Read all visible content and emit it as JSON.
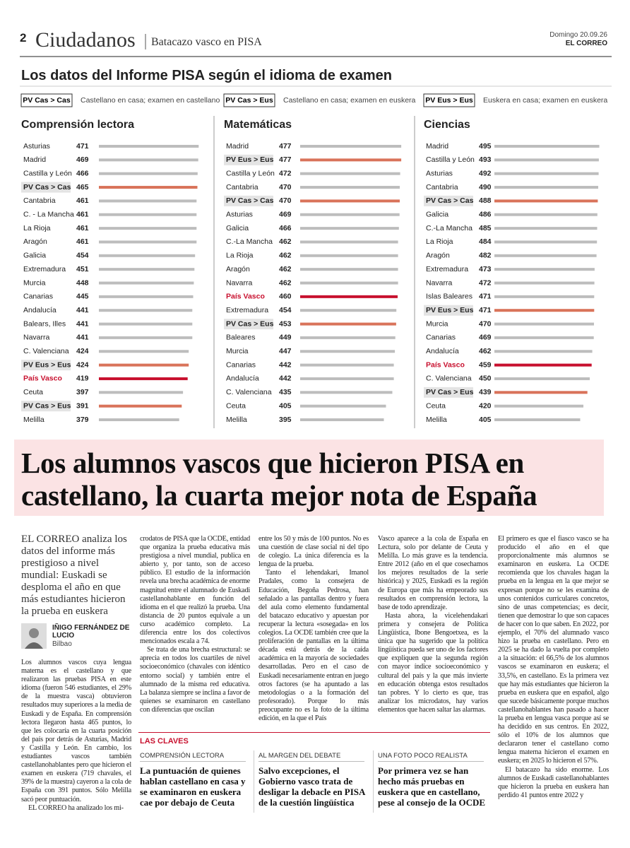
{
  "header": {
    "page_number": "2",
    "section": "Ciudadanos",
    "topic": "Batacazo vasco en PISA",
    "date": "Domingo 20.09.26",
    "publication": "EL CORREO"
  },
  "charts_title": "Los datos del Informe PISA según el idioma de examen",
  "keys": [
    {
      "label": "PV Cas > Cas",
      "text": "Castellano en casa; examen en castellano"
    },
    {
      "label": "PV Cas > Eus",
      "text": "Castellano en casa; examen en euskera"
    },
    {
      "label": "PV Eus > Eus",
      "text": "Euskera en casa; examen en euskera"
    }
  ],
  "palette": {
    "default": "#bdbdbd",
    "language_group": "#d9735a",
    "region": "#c8102e"
  },
  "chart_data": [
    {
      "type": "bar",
      "orientation": "horizontal",
      "title": "Comprensión lectora",
      "categories": [
        "Asturias",
        "Madrid",
        "Castilla y León",
        "PV Cas > Cas",
        "Cantabria",
        "C. - La Mancha",
        "La Rioja",
        "Aragón",
        "Galicia",
        "Extremadura",
        "Murcia",
        "Canarias",
        "Andalucía",
        "Balears, Illes",
        "Navarra",
        "C. Valenciana",
        "PV Eus > Eus",
        "País Vasco",
        "Ceuta",
        "PV Cas > Eus",
        "Melilla"
      ],
      "values": [
        471,
        469,
        466,
        465,
        461,
        461,
        461,
        461,
        454,
        451,
        448,
        445,
        441,
        441,
        441,
        424,
        424,
        419,
        397,
        391,
        379
      ],
      "colors": [
        "#bdbdbd",
        "#bdbdbd",
        "#bdbdbd",
        "#d9735a",
        "#bdbdbd",
        "#bdbdbd",
        "#bdbdbd",
        "#bdbdbd",
        "#bdbdbd",
        "#bdbdbd",
        "#bdbdbd",
        "#bdbdbd",
        "#bdbdbd",
        "#bdbdbd",
        "#bdbdbd",
        "#bdbdbd",
        "#d9735a",
        "#c8102e",
        "#bdbdbd",
        "#d9735a",
        "#bdbdbd"
      ]
    },
    {
      "type": "bar",
      "orientation": "horizontal",
      "title": "Matemáticas",
      "categories": [
        "Madrid",
        "PV Eus > Eus",
        "Castilla y León",
        "Cantabria",
        "PV Cas > Cas",
        "Asturias",
        "Galicia",
        "C.-La Mancha",
        "La Rioja",
        "Aragón",
        "Navarra",
        "País Vasco",
        "Extremadura",
        "PV Cas > Eus",
        "Baleares",
        "Murcia",
        "Canarias",
        "Andalucía",
        "C. Valenciana",
        "Ceuta",
        "Melilla"
      ],
      "values": [
        477,
        477,
        472,
        470,
        470,
        469,
        466,
        462,
        462,
        462,
        462,
        460,
        454,
        453,
        449,
        447,
        442,
        442,
        435,
        405,
        395
      ],
      "colors": [
        "#bdbdbd",
        "#d9735a",
        "#bdbdbd",
        "#bdbdbd",
        "#d9735a",
        "#bdbdbd",
        "#bdbdbd",
        "#bdbdbd",
        "#bdbdbd",
        "#bdbdbd",
        "#bdbdbd",
        "#c8102e",
        "#bdbdbd",
        "#d9735a",
        "#bdbdbd",
        "#bdbdbd",
        "#bdbdbd",
        "#bdbdbd",
        "#bdbdbd",
        "#bdbdbd",
        "#bdbdbd"
      ]
    },
    {
      "type": "bar",
      "orientation": "horizontal",
      "title": "Ciencias",
      "categories": [
        "Madrid",
        "Castilla y León",
        "Asturias",
        "Cantabria",
        "PV Cas > Cas",
        "Galicia",
        "C.-La Mancha",
        "La Rioja",
        "Aragón",
        "Extremadura",
        "Navarra",
        "Islas Baleares",
        "PV Eus > Eus",
        "Murcia",
        "Canarias",
        "Andalucía",
        "País Vasco",
        "C. Valenciana",
        "PV Cas > Eus",
        "Ceuta",
        "Melilla"
      ],
      "values": [
        495,
        493,
        492,
        490,
        488,
        486,
        485,
        484,
        482,
        473,
        472,
        471,
        471,
        470,
        469,
        462,
        459,
        450,
        439,
        420,
        405
      ],
      "colors": [
        "#bdbdbd",
        "#bdbdbd",
        "#bdbdbd",
        "#bdbdbd",
        "#d9735a",
        "#bdbdbd",
        "#bdbdbd",
        "#bdbdbd",
        "#bdbdbd",
        "#bdbdbd",
        "#bdbdbd",
        "#bdbdbd",
        "#d9735a",
        "#bdbdbd",
        "#bdbdbd",
        "#bdbdbd",
        "#c8102e",
        "#bdbdbd",
        "#d9735a",
        "#bdbdbd",
        "#bdbdbd"
      ]
    }
  ],
  "article": {
    "headline": [
      "Los alumnos vascos que hicieron PISA en",
      "castellano, la cuarta mejor nota de España"
    ],
    "lead": "EL CORREO analiza los datos del informe más prestigioso a nivel mundial: Euskadi se desploma el año en que más estudiantes hicieron la prueba en euskera",
    "author": "IÑIGO FERNÁNDEZ DE LUCIO",
    "location": "Bilbao",
    "columns": [
      [
        "Los alumnos vascos cuya lengua materna es el castellano y que realizaron las pruebas PISA en este idioma (fueron 546 estudiantes, el 29% de la muestra vasca) obtuvieron resultados muy superiores a la media de Euskadi y de España. En comprensión lectora llegaron hasta 465 puntos, lo que les colocaría en la cuarta posición del país por detrás de Asturias, Madrid y Castilla y León. En cambio, los estudiantes vascos también castellanohablantes pero que hicieron el examen en euskera (719 chavales, el 39% de la muestra) cayeron a la cola de España con 391 puntos. Sólo Melilla sacó peor puntuación.",
        "EL CORREO ha analizado los mi-"
      ],
      [
        "crodatos de PISA que la OCDE, entidad que organiza la prueba educativa más prestigiosa a nivel mundial, publica en abierto y, por tanto, son de acceso público. El estudio de la información revela una brecha académica de enorme magnitud entre el alumnado de Euskadi castellanohablante en función del idioma en el que realizó la prueba. Una distancia de 20 puntos equivale a un curso académico completo. La diferencia entre los dos colectivos mencionados escala a 74.",
        "Se trata de una brecha estructural: se aprecia en todos los cuartiles de nivel socioeconómico (chavales con idéntico entorno social) y también entre el alumnado de la misma red educativa. La balanza siempre se inclina a favor de quienes se examinaron en castellano con diferencias que oscilan"
      ],
      [
        "entre los 50 y más de 100 puntos. No es una cuestión de clase social ni del tipo de colegio. La única diferencia es la lengua de la prueba.",
        "Tanto el lehendakari, Imanol Pradales, como la consejera de Educación, Begoña Pedrosa, han señalado a las pantallas dentro y fuera del aula como elemento fundamental del batacazo educativo y apuestan por recuperar la lectura «sosegada» en los colegios. La OCDE también cree que la proliferación de pantallas en la última década está detrás de la caída académica en la mayoría de sociedades desarrolladas. Pero en el caso de Euskadi necesariamente entran en juego otros factores (se ha apuntado a las metodologías o a la formación del profesorado). Porque lo más preocupante no es la foto de la última edición, en la que el País"
      ],
      [
        "Vasco aparece a la cola de España en Lectura, solo por delante de Ceuta y Melilla. Lo más grave es la tendencia. Entre 2012 (año en el que cosechamos los mejores resultados de la serie histórica) y 2025, Euskadi es la región de Europa que más ha empeorado sus resultados en comprensión lectora, la base de todo aprendizaje.",
        "Hasta ahora, la vicelehendakari primera y consejera de Política Lingüística, Ibone Bengoetxea, es la única que ha sugerido que la política lingüística pueda ser uno de los factores que expliquen que la segunda región con mayor índice socioeconómico y cultural del país y la que más invierte en educación obtenga estos resultados tan pobres. Y lo cierto es que, tras analizar los microdatos, hay varios elementos que hacen saltar las alarmas."
      ],
      [
        "El primero es que el fiasco vasco se ha producido el año en el que proporcionalmente más alumnos se examinaron en euskera. La OCDE recomienda que los chavales hagan la prueba en la lengua en la que mejor se expresan porque no se les examina de unos contenidos curriculares concretos, sino de unas competencias; es decir, tienen que demostrar lo que son capaces de hacer con lo que saben. En 2022, por ejemplo, el 70% del alumnado vasco hizo la prueba en castellano. Pero en 2025 se ha dado la vuelta por completo a la situación: el 66,5% de los alumnos vascos se examinaron en euskera; el 33,5%, en castellano. Es la primera vez que hay más estudiantes que hicieron la prueba en euskera que en español, algo que sucede básicamente porque muchos castellanohablantes han pasado a hacer la prueba en lengua vasca porque así se ha decidido en sus centros. En 2022, sólo el 10% de los alumnos que declararon tener el castellano como lengua materna hicieron el examen en euskera; en 2025 lo hicieron el 57%.",
        "El batacazo ha sido enorme. Los alumnos de Euskadi castellanohablantes que hicieron la prueba en euskera han perdido 41 puntos entre 2022 y"
      ]
    ]
  },
  "key_points": {
    "title": "LAS CLAVES",
    "items": [
      {
        "label": "COMPRENSIÓN LECTORA",
        "text": "La puntuación de quienes hablan castellano en casa y se examinaron en euskera cae por debajo de Ceuta"
      },
      {
        "label": "AL MARGEN DEL DEBATE",
        "text": "Salvo excepciones, el Gobierno vasco trata de desligar la debacle en PISA de la cuestión lingüística"
      },
      {
        "label": "UNA FOTO POCO REALISTA",
        "text": "Por primera vez se han hecho más pruebas en euskera que en castellano, pese al consejo de la OCDE"
      }
    ]
  }
}
